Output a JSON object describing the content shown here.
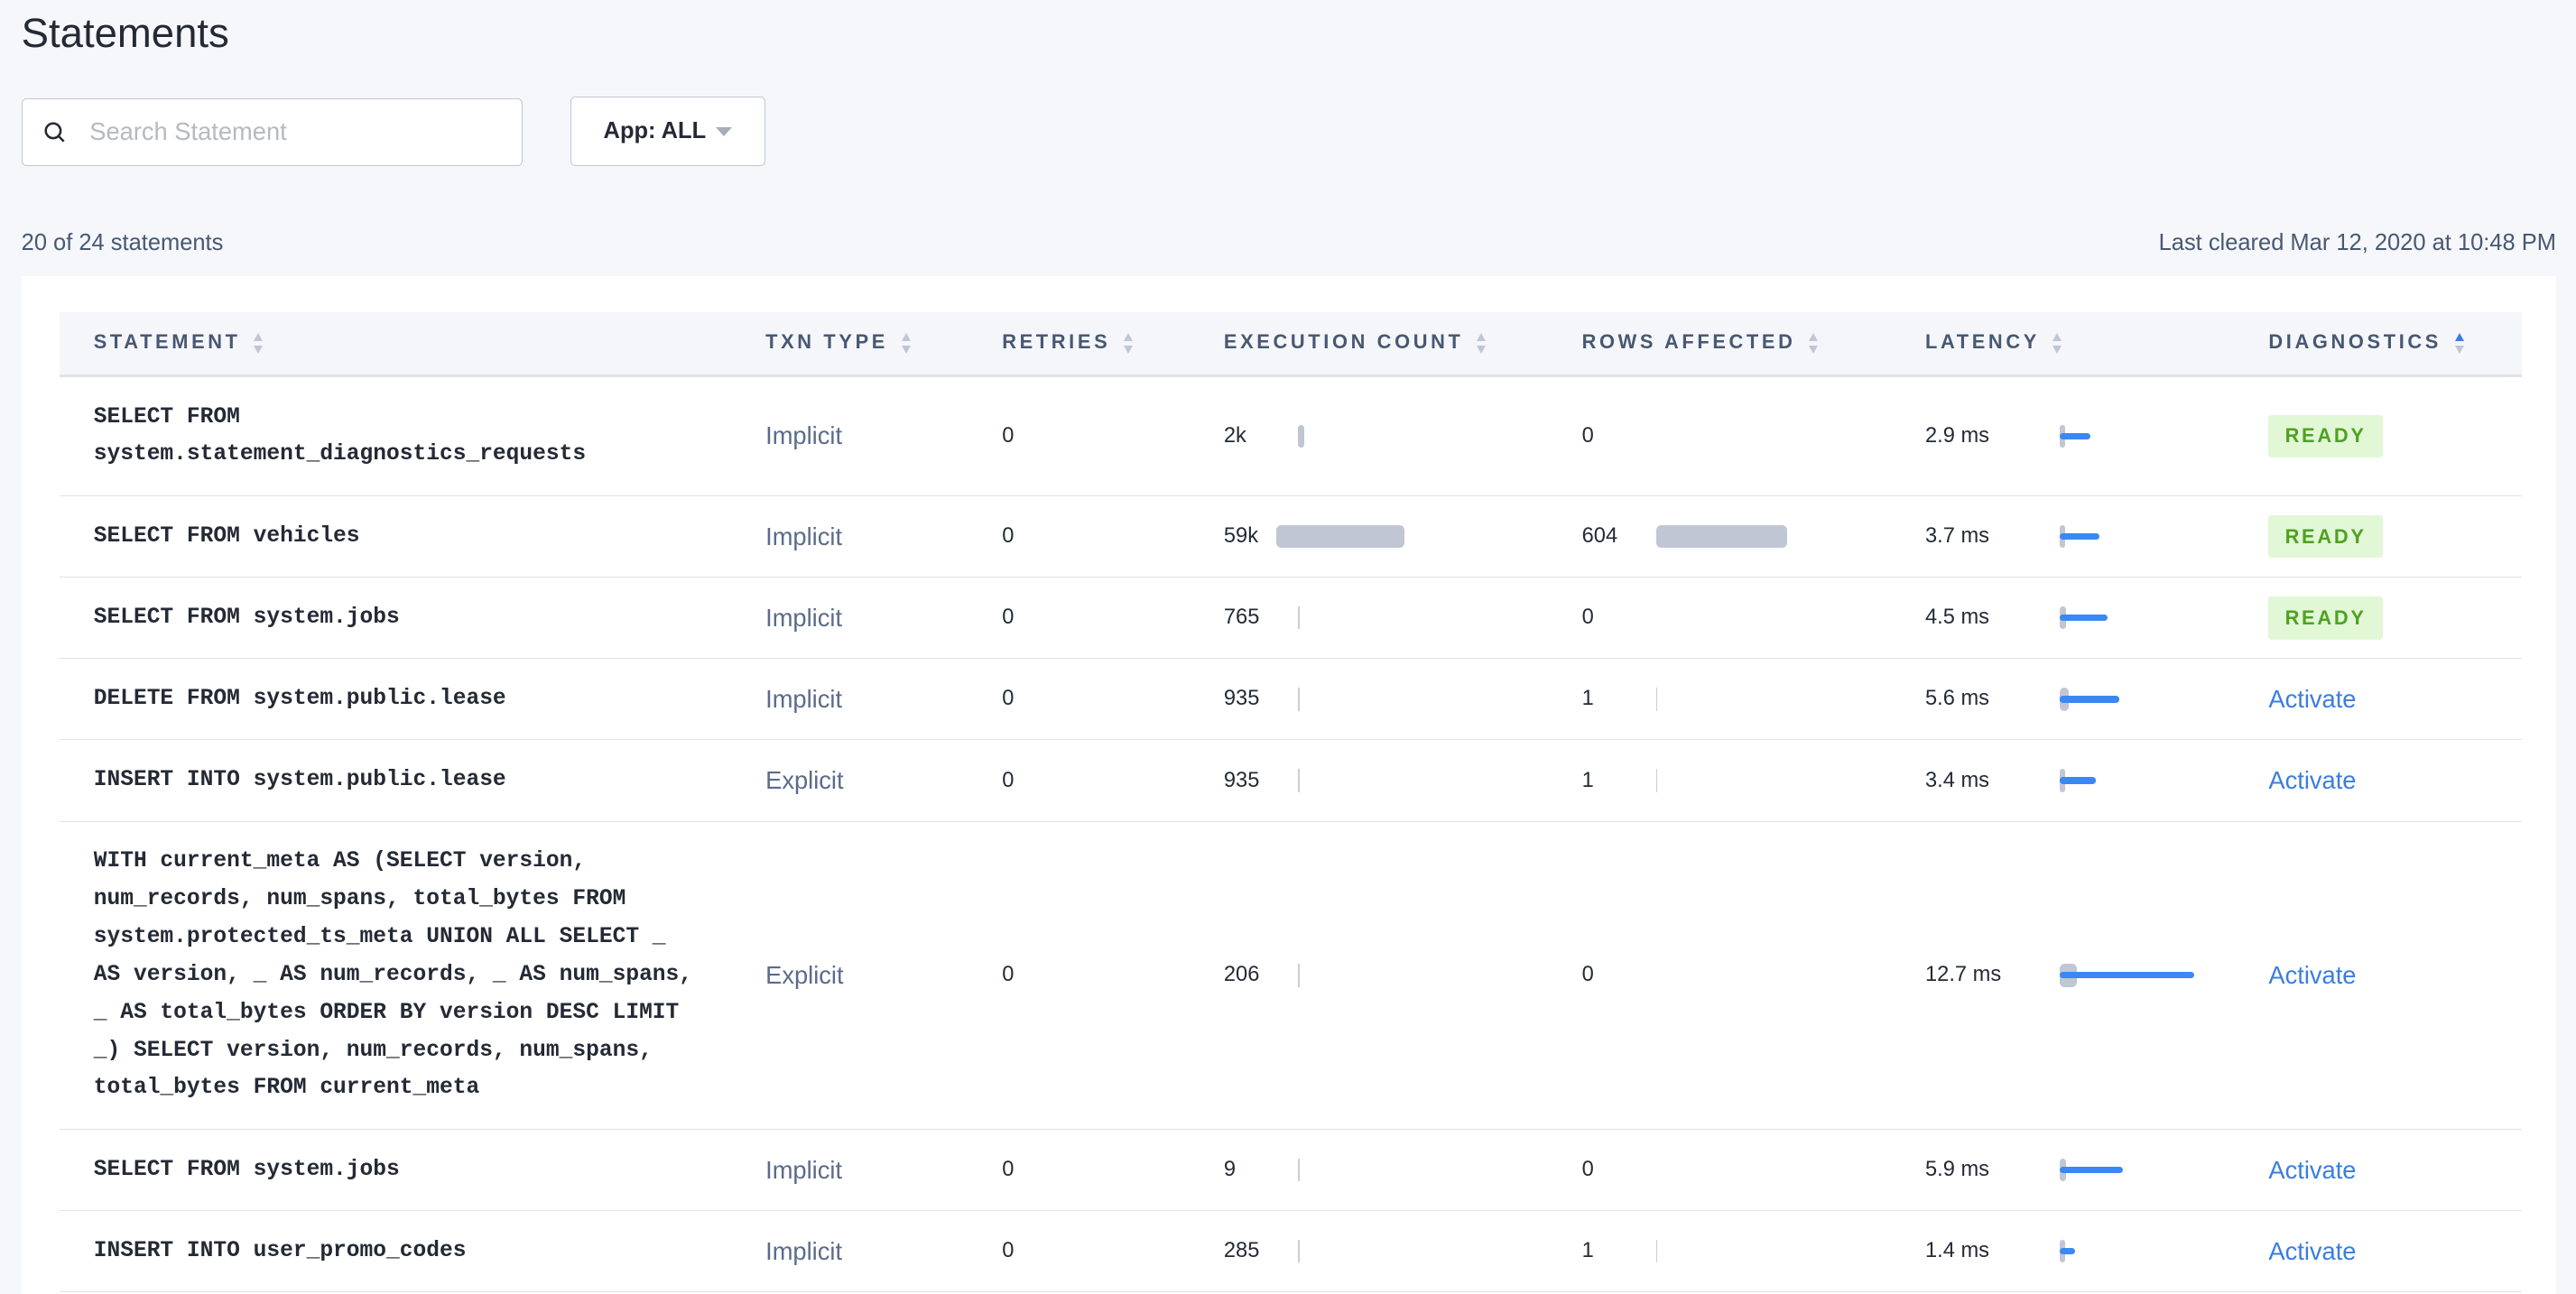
{
  "page": {
    "title": "Statements",
    "search_placeholder": "Search Statement",
    "app_filter_label": "App: ALL",
    "statement_count": "20 of 24 statements",
    "last_cleared": "Last cleared Mar 12, 2020 at 10:48 PM"
  },
  "colors": {
    "accent": "#3a7de1",
    "bar_gray": "#c0c6d3",
    "latency_blue": "#3b87f5",
    "ready_bg": "#e1f7d6",
    "ready_text": "#4ea21f"
  },
  "columns": [
    {
      "label": "STATEMENT",
      "sort": "none"
    },
    {
      "label": "TXN TYPE",
      "sort": "none"
    },
    {
      "label": "RETRIES",
      "sort": "none"
    },
    {
      "label": "EXECUTION COUNT",
      "sort": "none"
    },
    {
      "label": "ROWS AFFECTED",
      "sort": "none"
    },
    {
      "label": "LATENCY",
      "sort": "none"
    },
    {
      "label": "DIAGNOSTICS",
      "sort": "ascending"
    }
  ],
  "rows": [
    {
      "statement": "SELECT FROM system.statement_diagnostics_requests",
      "txn_type": "Implicit",
      "retries": "0",
      "exec_count": "2k",
      "exec_count_value": 2000,
      "rows_affected": "0",
      "rows_affected_value": 0,
      "latency": "2.9 ms",
      "latency_ms": 2.9,
      "latency_spread_ms": 0.5,
      "diagnostics": "READY"
    },
    {
      "statement": "SELECT FROM vehicles",
      "txn_type": "Implicit",
      "retries": "0",
      "exec_count": "59k",
      "exec_count_value": 59000,
      "rows_affected": "604",
      "rows_affected_value": 604,
      "latency": "3.7 ms",
      "latency_ms": 3.7,
      "latency_spread_ms": 0.5,
      "diagnostics": "READY"
    },
    {
      "statement": "SELECT FROM system.jobs",
      "txn_type": "Implicit",
      "retries": "0",
      "exec_count": "765",
      "exec_count_value": 765,
      "rows_affected": "0",
      "rows_affected_value": 0,
      "latency": "4.5 ms",
      "latency_ms": 4.5,
      "latency_spread_ms": 0.8,
      "diagnostics": "READY"
    },
    {
      "statement": "DELETE FROM system.public.lease",
      "txn_type": "Implicit",
      "retries": "0",
      "exec_count": "935",
      "exec_count_value": 935,
      "rows_affected": "1",
      "rows_affected_value": 1,
      "latency": "5.6 ms",
      "latency_ms": 5.6,
      "latency_spread_ms": 1.1,
      "diagnostics": "Activate"
    },
    {
      "statement": "INSERT INTO system.public.lease",
      "txn_type": "Explicit",
      "retries": "0",
      "exec_count": "935",
      "exec_count_value": 935,
      "rows_affected": "1",
      "rows_affected_value": 1,
      "latency": "3.4 ms",
      "latency_ms": 3.4,
      "latency_spread_ms": 0.5,
      "diagnostics": "Activate"
    },
    {
      "statement": "WITH current_meta AS (SELECT version, num_records, num_spans, total_bytes FROM system.protected_ts_meta UNION ALL SELECT _ AS version, _ AS num_records, _ AS num_spans, _ AS total_bytes ORDER BY version DESC LIMIT _) SELECT version, num_records, num_spans, total_bytes FROM current_meta",
      "txn_type": "Explicit",
      "retries": "0",
      "exec_count": "206",
      "exec_count_value": 206,
      "rows_affected": "0",
      "rows_affected_value": 0,
      "latency": "12.7 ms",
      "latency_ms": 12.7,
      "latency_spread_ms": 2.1,
      "diagnostics": "Activate"
    },
    {
      "statement": "SELECT FROM system.jobs",
      "txn_type": "Implicit",
      "retries": "0",
      "exec_count": "9",
      "exec_count_value": 9,
      "rows_affected": "0",
      "rows_affected_value": 0,
      "latency": "5.9 ms",
      "latency_ms": 5.9,
      "latency_spread_ms": 0.8,
      "diagnostics": "Activate"
    },
    {
      "statement": "INSERT INTO user_promo_codes",
      "txn_type": "Implicit",
      "retries": "0",
      "exec_count": "285",
      "exec_count_value": 285,
      "rows_affected": "1",
      "rows_affected_value": 1,
      "latency": "1.4 ms",
      "latency_ms": 1.4,
      "latency_spread_ms": 0.3,
      "diagnostics": "Activate"
    }
  ]
}
